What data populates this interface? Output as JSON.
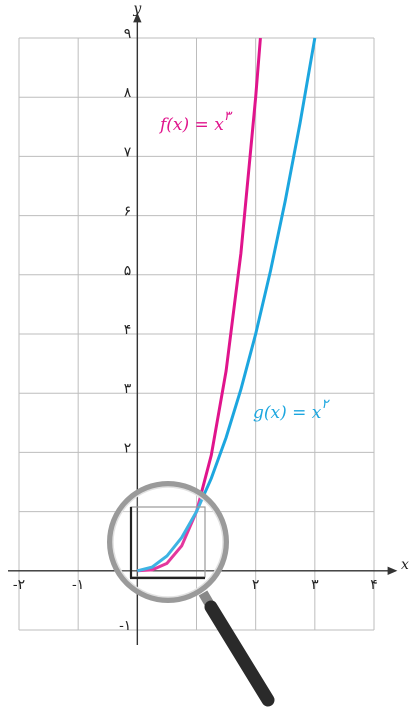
{
  "chart_data": {
    "type": "line",
    "x_label": "x",
    "y_label": "y",
    "xlim": [
      -2,
      4
    ],
    "ylim": [
      -1,
      9
    ],
    "xticks": [
      {
        "value": -2,
        "label": "-۲"
      },
      {
        "value": -1,
        "label": "-۱"
      },
      {
        "value": 0,
        "label": null
      },
      {
        "value": 1,
        "label": null
      },
      {
        "value": 2,
        "label": "۲"
      },
      {
        "value": 3,
        "label": "۳"
      },
      {
        "value": 4,
        "label": "۴"
      }
    ],
    "yticks": [
      {
        "value": -1,
        "label": "-۱"
      },
      {
        "value": 0,
        "label": null
      },
      {
        "value": 1,
        "label": null
      },
      {
        "value": 2,
        "label": "۲"
      },
      {
        "value": 3,
        "label": "۳"
      },
      {
        "value": 4,
        "label": "۴"
      },
      {
        "value": 5,
        "label": "۵"
      },
      {
        "value": 6,
        "label": "۶"
      },
      {
        "value": 7,
        "label": "۷"
      },
      {
        "value": 8,
        "label": "۸"
      },
      {
        "value": 9,
        "label": "۹"
      }
    ],
    "grid": true,
    "series": [
      {
        "name": "f(x) = x",
        "exponent": "۳",
        "color": "#e0148c",
        "x": [
          0,
          0.25,
          0.5,
          0.75,
          1,
          1.25,
          1.5,
          1.75,
          2,
          2.08
        ],
        "values": [
          0,
          0.015625,
          0.125,
          0.421875,
          1,
          1.953125,
          3.375,
          5.359375,
          8,
          8.9989
        ]
      },
      {
        "name": "g(x) = x",
        "exponent": "۲",
        "color": "#1ca6df",
        "x": [
          0,
          0.25,
          0.5,
          0.75,
          1,
          1.25,
          1.5,
          1.75,
          2,
          2.25,
          2.5,
          2.75,
          3
        ],
        "values": [
          0,
          0.0625,
          0.25,
          0.5625,
          1,
          1.5625,
          2.25,
          3.0625,
          4,
          5.0625,
          6.25,
          7.5625,
          9
        ]
      }
    ]
  }
}
